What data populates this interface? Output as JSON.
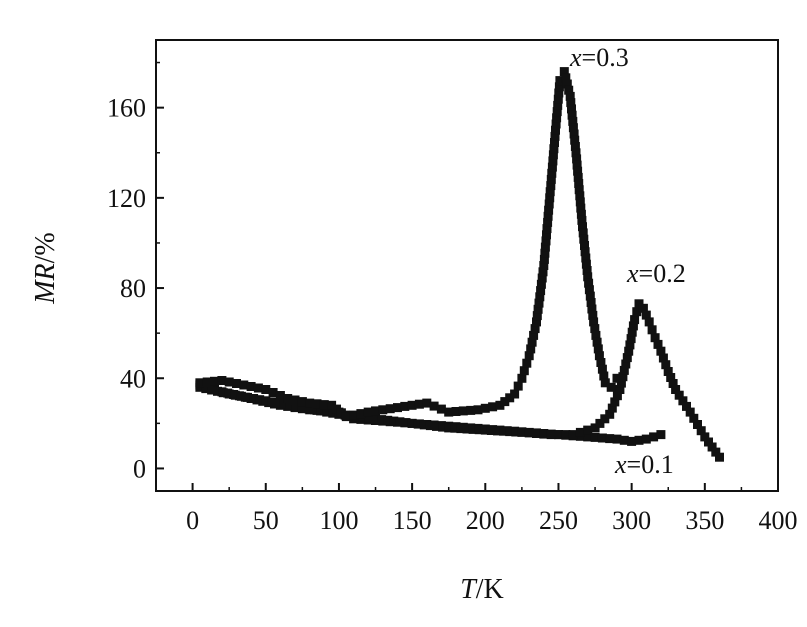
{
  "chart_data": {
    "type": "scatter",
    "xlabel": {
      "italic": "T",
      "rest": "/K"
    },
    "ylabel": {
      "italic": "MR",
      "rest": "/%"
    },
    "xlim": [
      -25,
      400
    ],
    "ylim": [
      -10,
      190
    ],
    "xticks": [
      "0",
      "50",
      "100",
      "150",
      "200",
      "250",
      "300",
      "350",
      "400"
    ],
    "yticks": [
      "0",
      "40",
      "80",
      "120",
      "160"
    ],
    "marker_color": "#111111",
    "series": [
      {
        "name": "x=0.1",
        "label_italic": "x",
        "label_rest": "=0.1",
        "x": [
          5,
          20,
          40,
          60,
          80,
          100,
          110,
          130,
          150,
          170,
          190,
          210,
          230,
          250,
          270,
          290,
          300,
          310,
          320
        ],
        "y": [
          37,
          34,
          31,
          28,
          26,
          25,
          22,
          21,
          20,
          19,
          18,
          17,
          16,
          15,
          14,
          13,
          12,
          13,
          15
        ]
      },
      {
        "name": "x=0.2",
        "label_italic": "x",
        "label_rest": "=0.2",
        "x": [
          5,
          25,
          50,
          75,
          100,
          125,
          150,
          175,
          200,
          225,
          245,
          260,
          275,
          285,
          292,
          298,
          302,
          305,
          308,
          312,
          316,
          320,
          325,
          330,
          340,
          350,
          360
        ],
        "y": [
          36,
          33,
          30,
          27,
          24,
          22,
          20,
          18,
          17,
          16,
          15,
          15,
          18,
          24,
          35,
          52,
          66,
          73,
          71,
          65,
          58,
          52,
          43,
          35,
          25,
          14,
          5
        ]
      },
      {
        "name": "x=0.3",
        "label_italic": "x",
        "label_rest": "=0.3",
        "x": [
          5,
          20,
          35,
          50,
          65,
          80,
          95,
          105,
          120,
          140,
          160,
          175,
          195,
          210,
          220,
          225,
          230,
          235,
          240,
          244,
          248,
          251,
          254,
          258,
          262,
          266,
          270,
          274,
          278,
          282,
          286,
          290
        ],
        "y": [
          38,
          39,
          37,
          35,
          31,
          29,
          28,
          23,
          25,
          27,
          29,
          25,
          26,
          28,
          33,
          40,
          50,
          65,
          90,
          120,
          150,
          172,
          176,
          165,
          140,
          110,
          85,
          65,
          50,
          38,
          36,
          40
        ]
      }
    ]
  }
}
